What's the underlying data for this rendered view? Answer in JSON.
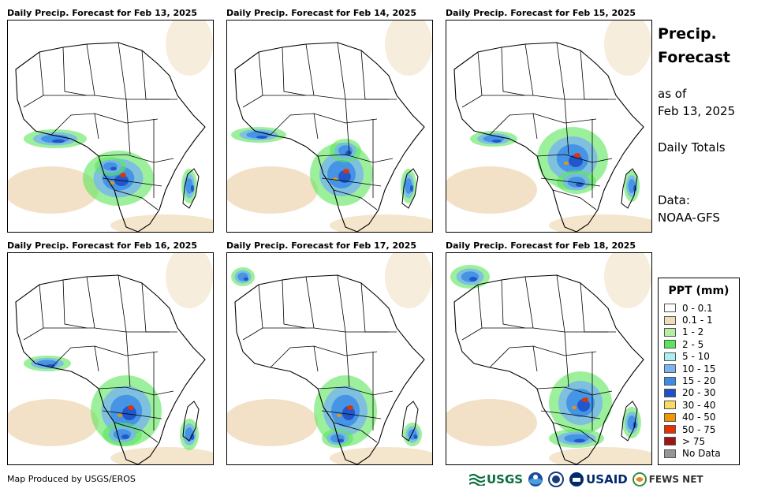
{
  "panels": [
    {
      "title": "Daily Precip. Forecast for Feb 13, 2025"
    },
    {
      "title": "Daily Precip. Forecast for Feb 14, 2025"
    },
    {
      "title": "Daily Precip. Forecast for Feb 15, 2025"
    },
    {
      "title": "Daily Precip. Forecast for Feb 16, 2025"
    },
    {
      "title": "Daily Precip. Forecast for Feb 17, 2025"
    },
    {
      "title": "Daily Precip. Forecast for Feb 18, 2025"
    }
  ],
  "side": {
    "title_line1": "Precip.",
    "title_line2": "Forecast",
    "as_of": "as of",
    "date": "Feb 13, 2025",
    "totals": "Daily Totals",
    "data_label": "Data:",
    "data_source": "NOAA-GFS"
  },
  "legend": {
    "title": "PPT (mm)",
    "items": [
      {
        "label": "0 - 0.1",
        "color": "#ffffff"
      },
      {
        "label": "0.1 - 1",
        "color": "#f0dcbc"
      },
      {
        "label": "1 - 2",
        "color": "#b4f0a0"
      },
      {
        "label": "2 - 5",
        "color": "#5ae65a"
      },
      {
        "label": "5 - 10",
        "color": "#aaf0f0"
      },
      {
        "label": "10 - 15",
        "color": "#78b4f0"
      },
      {
        "label": "15 - 20",
        "color": "#3c8ce6"
      },
      {
        "label": "20 - 30",
        "color": "#1e50c8"
      },
      {
        "label": "30 - 40",
        "color": "#fadc64"
      },
      {
        "label": "40 - 50",
        "color": "#f09600"
      },
      {
        "label": "50 - 75",
        "color": "#e63200"
      },
      {
        "label": "> 75",
        "color": "#a01414"
      },
      {
        "label": "No Data",
        "color": "#969696"
      }
    ]
  },
  "credit": "Map Produced by USGS/EROS",
  "logos": {
    "usgs": "USGS",
    "usaid": "USAID",
    "fews": "FEWS NET"
  }
}
